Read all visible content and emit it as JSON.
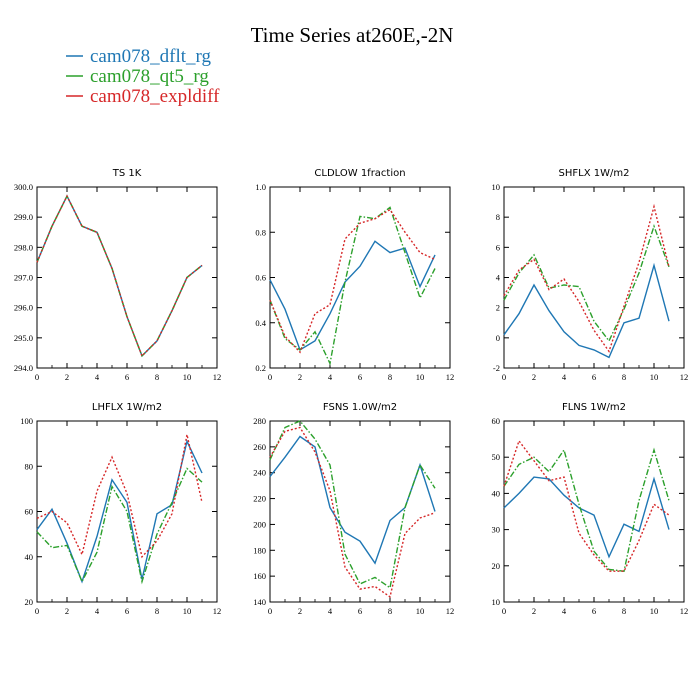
{
  "title": "Time Series at260E,-2N",
  "colors": {
    "blue": "#1f77b4",
    "green": "#2ca02c",
    "red": "#d62728"
  },
  "legend": [
    {
      "label": "cam078_dflt_rg",
      "color": "#1f77b4",
      "dash": "solid"
    },
    {
      "label": "cam078_qt5_rg",
      "color": "#2ca02c",
      "dash": "dashdot"
    },
    {
      "label": "cam078_expldiff",
      "color": "#d62728",
      "dash": "dotted"
    }
  ],
  "chart_data": [
    {
      "type": "line",
      "title": "TS 1K",
      "x": [
        0,
        1,
        2,
        3,
        4,
        5,
        6,
        7,
        8,
        9,
        10,
        11
      ],
      "xlim": [
        0,
        12
      ],
      "xticks": [
        0,
        2,
        4,
        6,
        8,
        10,
        12
      ],
      "ylim": [
        294,
        300
      ],
      "yticks": [
        294,
        295,
        296,
        297,
        298,
        299,
        300
      ],
      "ytick_labels": [
        "294.0",
        "295.0",
        "296.0",
        "297.0",
        "298.0",
        "299.0",
        "300.0"
      ],
      "series": [
        {
          "name": "cam078_dflt_rg",
          "values": [
            297.5,
            298.7,
            299.7,
            298.7,
            298.5,
            297.3,
            295.7,
            294.4,
            294.9,
            295.9,
            297.0,
            297.4
          ]
        },
        {
          "name": "cam078_qt5_rg",
          "values": [
            297.5,
            298.7,
            299.7,
            298.7,
            298.5,
            297.3,
            295.7,
            294.4,
            294.9,
            295.9,
            297.0,
            297.4
          ]
        },
        {
          "name": "cam078_expldiff",
          "values": [
            297.5,
            298.7,
            299.7,
            298.7,
            298.5,
            297.3,
            295.7,
            294.4,
            294.9,
            295.9,
            297.0,
            297.4
          ]
        }
      ]
    },
    {
      "type": "line",
      "title": "CLDLOW 1fraction",
      "x": [
        0,
        1,
        2,
        3,
        4,
        5,
        6,
        7,
        8,
        9,
        10,
        11
      ],
      "xlim": [
        0,
        12
      ],
      "xticks": [
        0,
        2,
        4,
        6,
        8,
        10,
        12
      ],
      "ylim": [
        0.2,
        1.0
      ],
      "yticks": [
        0.2,
        0.4,
        0.6,
        0.8,
        1.0
      ],
      "ytick_labels": [
        "0.2",
        "0.4",
        "0.6",
        "0.8",
        "1.0"
      ],
      "series": [
        {
          "name": "cam078_dflt_rg",
          "values": [
            0.59,
            0.46,
            0.28,
            0.32,
            0.44,
            0.58,
            0.65,
            0.76,
            0.71,
            0.73,
            0.56,
            0.7
          ]
        },
        {
          "name": "cam078_qt5_rg",
          "values": [
            0.5,
            0.33,
            0.28,
            0.36,
            0.22,
            0.58,
            0.87,
            0.86,
            0.91,
            0.71,
            0.51,
            0.64
          ]
        },
        {
          "name": "cam078_expldiff",
          "values": [
            0.5,
            0.34,
            0.27,
            0.44,
            0.48,
            0.77,
            0.84,
            0.86,
            0.9,
            0.8,
            0.71,
            0.68
          ]
        }
      ]
    },
    {
      "type": "line",
      "title": "SHFLX 1W/m2",
      "x": [
        0,
        1,
        2,
        3,
        4,
        5,
        6,
        7,
        8,
        9,
        10,
        11
      ],
      "xlim": [
        0,
        12
      ],
      "xticks": [
        0,
        2,
        4,
        6,
        8,
        10,
        12
      ],
      "ylim": [
        -2,
        10
      ],
      "yticks": [
        -2,
        0,
        2,
        4,
        6,
        8,
        10
      ],
      "ytick_labels": [
        "-2",
        "0",
        "2",
        "4",
        "6",
        "8",
        "10"
      ],
      "series": [
        {
          "name": "cam078_dflt_rg",
          "values": [
            0.2,
            1.6,
            3.5,
            1.8,
            0.4,
            -0.5,
            -0.8,
            -1.3,
            1.0,
            1.3,
            4.8,
            1.1
          ]
        },
        {
          "name": "cam078_qt5_rg",
          "values": [
            2.5,
            4.3,
            5.5,
            3.3,
            3.5,
            3.4,
            1.1,
            -0.2,
            1.9,
            4.3,
            7.4,
            4.7
          ]
        },
        {
          "name": "cam078_expldiff",
          "values": [
            2.8,
            4.5,
            5.2,
            3.2,
            3.9,
            2.4,
            0.5,
            -0.9,
            2.1,
            5.0,
            8.7,
            4.7
          ]
        }
      ]
    },
    {
      "type": "line",
      "title": "LHFLX 1W/m2",
      "x": [
        0,
        1,
        2,
        3,
        4,
        5,
        6,
        7,
        8,
        9,
        10,
        11
      ],
      "xlim": [
        0,
        12
      ],
      "xticks": [
        0,
        2,
        4,
        6,
        8,
        10,
        12
      ],
      "ylim": [
        20,
        100
      ],
      "yticks": [
        20,
        40,
        60,
        80,
        100
      ],
      "ytick_labels": [
        "20",
        "40",
        "60",
        "80",
        "100"
      ],
      "series": [
        {
          "name": "cam078_dflt_rg",
          "values": [
            52,
            61,
            46,
            29,
            49,
            74,
            64,
            30,
            59,
            63,
            91,
            77
          ]
        },
        {
          "name": "cam078_qt5_rg",
          "values": [
            51,
            44,
            45,
            29,
            42,
            71,
            60,
            29,
            50,
            64,
            79,
            73
          ]
        },
        {
          "name": "cam078_expldiff",
          "values": [
            57,
            60,
            55,
            41,
            69,
            84,
            68,
            40,
            47,
            59,
            94,
            64
          ]
        }
      ]
    },
    {
      "type": "line",
      "title": "FSNS 1.0W/m2",
      "x": [
        0,
        1,
        2,
        3,
        4,
        5,
        6,
        7,
        8,
        9,
        10,
        11
      ],
      "xlim": [
        0,
        12
      ],
      "xticks": [
        0,
        2,
        4,
        6,
        8,
        10,
        12
      ],
      "ylim": [
        140,
        280
      ],
      "yticks": [
        140,
        160,
        180,
        200,
        220,
        240,
        260,
        280
      ],
      "ytick_labels": [
        "140",
        "160",
        "180",
        "200",
        "220",
        "240",
        "260",
        "280"
      ],
      "series": [
        {
          "name": "cam078_dflt_rg",
          "values": [
            237,
            252,
            268,
            260,
            213,
            194,
            187,
            170,
            203,
            213,
            246,
            210
          ]
        },
        {
          "name": "cam078_qt5_rg",
          "values": [
            250,
            275,
            280,
            266,
            246,
            177,
            154,
            159,
            151,
            213,
            246,
            228
          ]
        },
        {
          "name": "cam078_expldiff",
          "values": [
            252,
            272,
            275,
            256,
            226,
            167,
            150,
            152,
            144,
            193,
            205,
            209
          ]
        }
      ]
    },
    {
      "type": "line",
      "title": "FLNS 1W/m2",
      "x": [
        0,
        1,
        2,
        3,
        4,
        5,
        6,
        7,
        8,
        9,
        10,
        11
      ],
      "xlim": [
        0,
        12
      ],
      "xticks": [
        0,
        2,
        4,
        6,
        8,
        10,
        12
      ],
      "ylim": [
        10,
        60
      ],
      "yticks": [
        10,
        20,
        30,
        40,
        50,
        60
      ],
      "ytick_labels": [
        "10",
        "20",
        "30",
        "40",
        "50",
        "60"
      ],
      "series": [
        {
          "name": "cam078_dflt_rg",
          "values": [
            36,
            40,
            44.5,
            44,
            39.5,
            36,
            34,
            22.5,
            31.5,
            29.5,
            44,
            30
          ]
        },
        {
          "name": "cam078_qt5_rg",
          "values": [
            42,
            48,
            50,
            46,
            52,
            37,
            24,
            19,
            18.5,
            38,
            52,
            38
          ]
        },
        {
          "name": "cam078_expldiff",
          "values": [
            42,
            54.5,
            49,
            43.5,
            44.5,
            29,
            23,
            18.5,
            18.5,
            27,
            37,
            34
          ]
        }
      ]
    }
  ]
}
